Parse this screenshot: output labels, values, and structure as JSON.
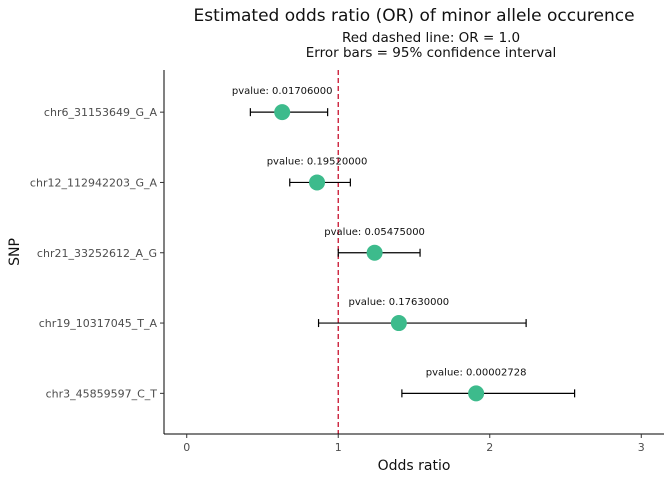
{
  "chart_data": {
    "type": "scatter",
    "title": "Estimated odds ratio (OR) of minor allele occurence",
    "subtitle_lines": [
      "Red dashed line: OR = 1.0",
      "Error bars = 95% confidence interval"
    ],
    "xlabel": "Odds ratio",
    "ylabel": "SNP",
    "xlim": [
      -0.15,
      3.15
    ],
    "x_ticks": [
      "0",
      "1",
      "2",
      "3"
    ],
    "reference_line": {
      "x": 1.0,
      "color": "#c8102e",
      "style": "dashed"
    },
    "point_color": "#3dbb8c",
    "grid": false,
    "points": [
      {
        "snp": "chr6_31153649_G_A",
        "or": 0.63,
        "ci_low": 0.42,
        "ci_high": 0.93,
        "pvalue": "pvalue: 0.01706000"
      },
      {
        "snp": "chr12_112942203_G_A",
        "or": 0.86,
        "ci_low": 0.68,
        "ci_high": 1.08,
        "pvalue": "pvalue: 0.19520000"
      },
      {
        "snp": "chr21_33252612_A_G",
        "or": 1.24,
        "ci_low": 1.0,
        "ci_high": 1.54,
        "pvalue": "pvalue: 0.05475000"
      },
      {
        "snp": "chr19_10317045_T_A",
        "or": 1.4,
        "ci_low": 0.87,
        "ci_high": 2.24,
        "pvalue": "pvalue: 0.17630000"
      },
      {
        "snp": "chr3_45859597_C_T",
        "or": 1.91,
        "ci_low": 1.42,
        "ci_high": 2.56,
        "pvalue": "pvalue: 0.00002728"
      }
    ]
  }
}
